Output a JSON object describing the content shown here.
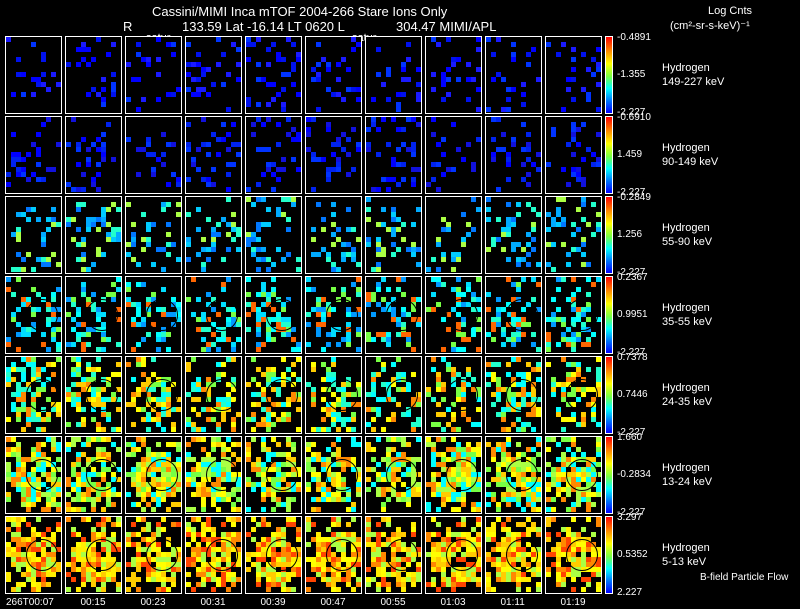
{
  "header": {
    "title": "Cassini/MIMI Inca mTOF  2004-266   Stare   Ions Only",
    "line2_r": "R",
    "line2_mid": "133.59 Lat -16.14 LT 0620 L",
    "line2_right": "304.47  MIMI/APL",
    "satur_left": "satur",
    "satur_right": "satur",
    "log_label": "Log Cnts",
    "units_label": "(cm²-sr-s-keV)⁻¹"
  },
  "rows": [
    {
      "species": "Hydrogen",
      "energy": "149-227 keV",
      "max": "-0.4891",
      "mid": "-1.355",
      "min": "-2.227"
    },
    {
      "species": "Hydrogen",
      "energy": "90-149 keV",
      "max": "-0.6910",
      "mid": "1.459",
      "min": "-2.227"
    },
    {
      "species": "Hydrogen",
      "energy": "55-90 keV",
      "max": "-0.2849",
      "mid": "1.256",
      "min": "-2.227"
    },
    {
      "species": "Hydrogen",
      "energy": "35-55 keV",
      "max": "0.2367",
      "mid": "0.9951",
      "min": "-2.227"
    },
    {
      "species": "Hydrogen",
      "energy": "24-35 keV",
      "max": "0.7378",
      "mid": "0.7446",
      "min": "-2.227"
    },
    {
      "species": "Hydrogen",
      "energy": "13-24 keV",
      "max": "1.660",
      "mid": "-0.2834",
      "min": "-2.227"
    },
    {
      "species": "Hydrogen",
      "energy": "5-13 keV",
      "max": "3.297",
      "mid": "0.5352",
      "min": "2.227"
    }
  ],
  "times": [
    "266T00:07",
    "00:15",
    "00:23",
    "00:31",
    "00:39",
    "00:47",
    "00:55",
    "01:03",
    "01:11",
    "01:19"
  ],
  "footer": {
    "legend": "B-field Particle Flow"
  },
  "colors": {
    "background": "#000000",
    "frame": "#ffffff"
  }
}
